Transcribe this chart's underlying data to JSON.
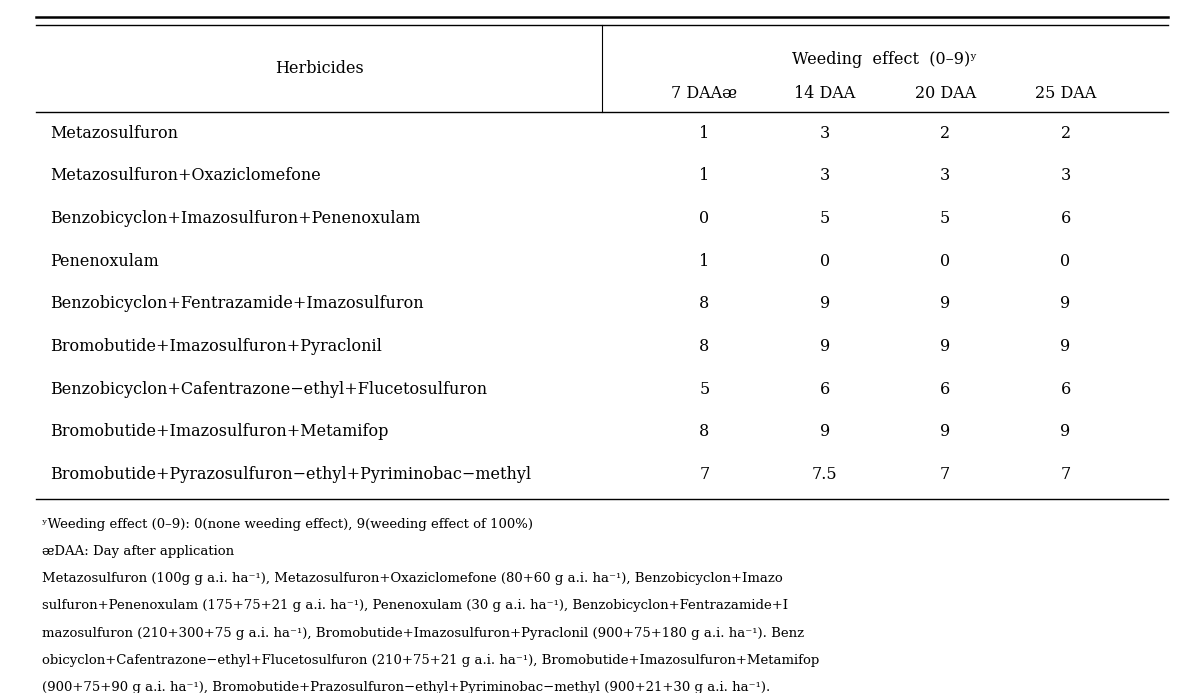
{
  "title_top": "Weeding  effect  (0–9)ʸ",
  "col_headers": [
    "7 DAAᴂ",
    "14 DAA",
    "20 DAA",
    "25 DAA"
  ],
  "row_labels": [
    "Metazosulfuron",
    "Metazosulfuron+Oxaziclomefone",
    "Benzobicyclon+Imazosulfuron+Penenoxulam",
    "Penenoxulam",
    "Benzobicyclon+Fentrazamide+Imazosulfuron",
    "Bromobutide+Imazosulfuron+Pyraclonil",
    "Benzobicyclon+Cafentrazone−ethyl+Flucetosulfuron",
    "Bromobutide+Imazosulfuron+Metamifop",
    "Bromobutide+Pyrazosulfuron−ethyl+Pyriminobac−methyl"
  ],
  "data": [
    [
      "1",
      "3",
      "2",
      "2"
    ],
    [
      "1",
      "3",
      "3",
      "3"
    ],
    [
      "0",
      "5",
      "5",
      "6"
    ],
    [
      "1",
      "0",
      "0",
      "0"
    ],
    [
      "8",
      "9",
      "9",
      "9"
    ],
    [
      "8",
      "9",
      "9",
      "9"
    ],
    [
      "5",
      "6",
      "6",
      "6"
    ],
    [
      "8",
      "9",
      "9",
      "9"
    ],
    [
      "7",
      "7.5",
      "7",
      "7"
    ]
  ],
  "footnote_lines": [
    "ʸWeeding effect (0–9): 0(none weeding effect), 9(weeding effect of 100%)",
    "ᴂDAA: Day after application",
    "Metazosulfuron (100g g a.i. ha⁻¹), Metazosulfuron+Oxaziclomefone (80+60 g a.i. ha⁻¹), Benzobicyclon+Imazo",
    "sulfuron+Penenoxulam (175+75+21 g a.i. ha⁻¹), Penenoxulam (30 g a.i. ha⁻¹), Benzobicyclon+Fentrazamide+I",
    "mazosulfuron (210+300+75 g a.i. ha⁻¹), Bromobutide+Imazosulfuron+Pyraclonil (900+75+180 g a.i. ha⁻¹). Benz",
    "obicyclon+Cafentrazone−ethyl+Flucetosulfuron (210+75+21 g a.i. ha⁻¹), Bromobutide+Imazosulfuron+Metamifop",
    "(900+75+90 g a.i. ha⁻¹), Bromobutide+Prazosulfuron−ethyl+Pyriminobac−methyl (900+21+30 g a.i. ha⁻¹)."
  ],
  "herbicides_label": "Herbicides",
  "bg_color": "#ffffff",
  "text_color": "#000000",
  "font_size_header": 11.5,
  "font_size_body": 11.5,
  "font_size_footnote": 9.5
}
